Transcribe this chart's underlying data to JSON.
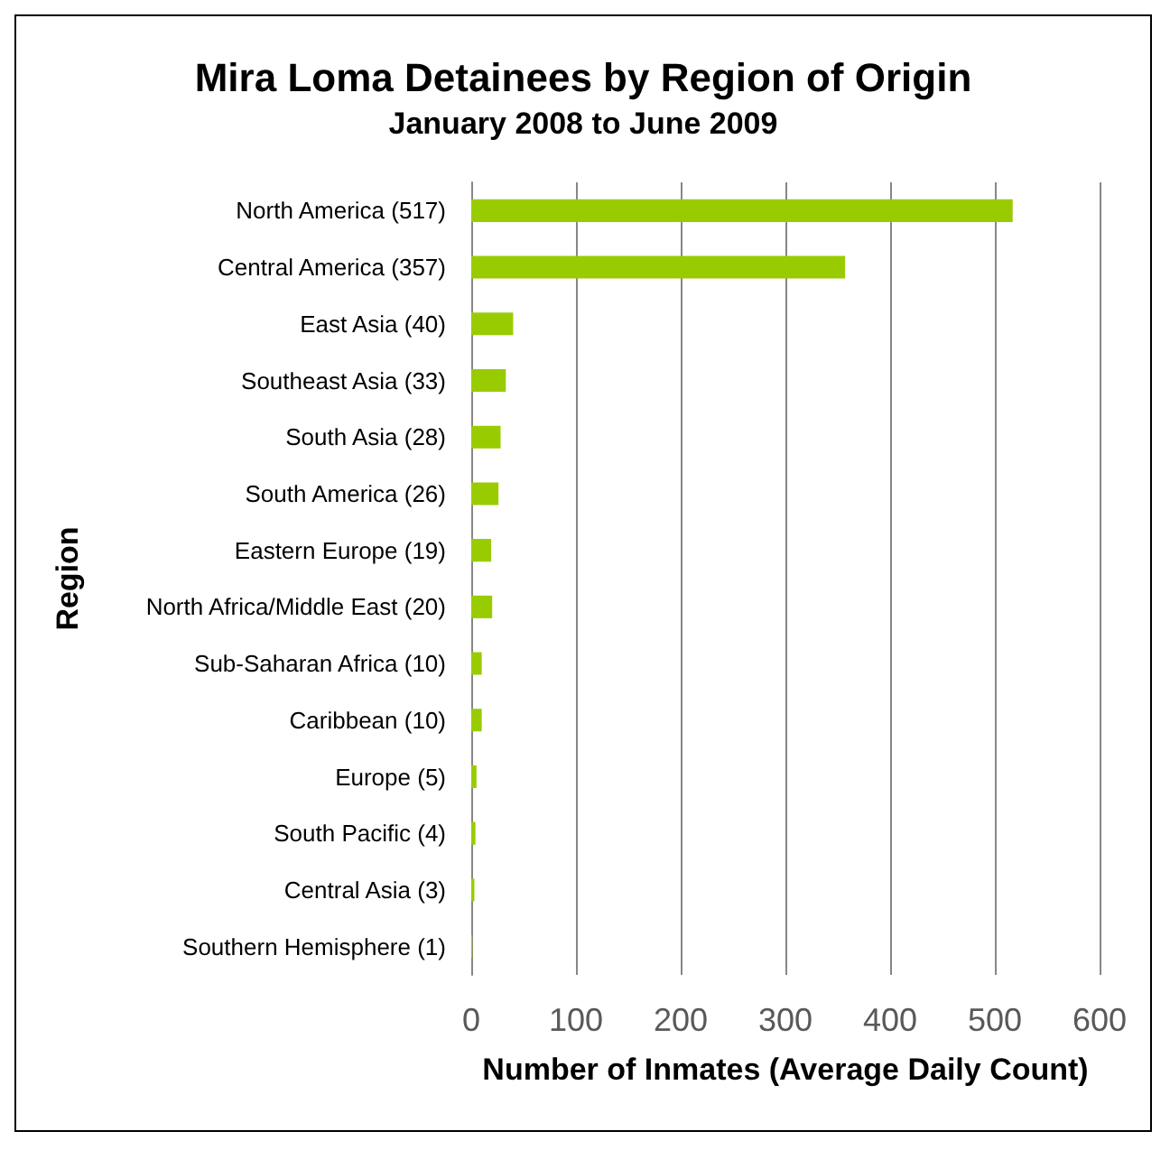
{
  "chart_data": {
    "type": "bar",
    "orientation": "horizontal",
    "title": "Mira Loma Detainees by Region of Origin",
    "subtitle": "January 2008 to June 2009",
    "xlabel": "Number of Inmates (Average Daily Count)",
    "ylabel": "Region",
    "categories": [
      "North America (517)",
      "Central America (357)",
      "East Asia (40)",
      "Southeast Asia (33)",
      "South Asia (28)",
      "South America (26)",
      "Eastern Europe (19)",
      "North Africa/Middle East (20)",
      "Sub-Saharan Africa (10)",
      "Caribbean (10)",
      "Europe (5)",
      "South Pacific (4)",
      "Central Asia (3)",
      "Southern Hemisphere (1)"
    ],
    "values": [
      517,
      357,
      40,
      33,
      28,
      26,
      19,
      20,
      10,
      10,
      5,
      4,
      3,
      1
    ],
    "color": "#99cc00",
    "xlim": [
      0,
      600
    ],
    "xticks": [
      0,
      100,
      200,
      300,
      400,
      500,
      600
    ],
    "grid": "x"
  }
}
